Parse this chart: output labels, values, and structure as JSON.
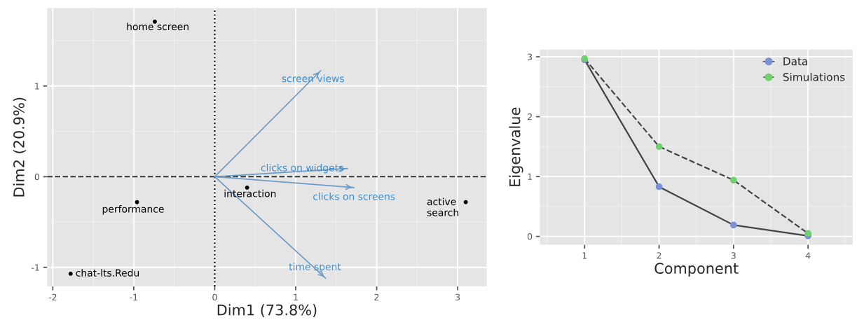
{
  "chart_data": [
    {
      "type": "scatter",
      "xlabel": "Dim1 (73.8%)",
      "ylabel": "Dim2 (20.9%)",
      "xlim": [
        -2.07,
        3.36
      ],
      "ylim": [
        -1.21,
        1.86
      ],
      "xticks": [
        {
          "value": -2,
          "label": "-2"
        },
        {
          "value": -1,
          "label": "-1"
        },
        0,
        1,
        2,
        3
      ],
      "yticks": [
        {
          "value": -1,
          "label": "-1"
        },
        0,
        1
      ],
      "grid": true,
      "series": [
        {
          "type": "scatter",
          "marker": "circle",
          "color": "#000000",
          "x": [
            -0.74,
            -0.96,
            -1.78,
            0.4,
            3.1
          ],
          "values": [
            1.71,
            -0.28,
            -1.07,
            -0.12,
            -0.28
          ]
        },
        {
          "type": "line",
          "marker": "none",
          "color": "#6a9bc8",
          "x": [
            0,
            1.31
          ],
          "values": [
            0,
            1.17
          ]
        },
        {
          "type": "line",
          "marker": "none",
          "color": "#6a9bc8",
          "x": [
            0,
            1.64
          ],
          "values": [
            0,
            0.09
          ]
        },
        {
          "type": "line",
          "marker": "none",
          "color": "#6a9bc8",
          "x": [
            0,
            1.72
          ],
          "values": [
            0,
            -0.12
          ]
        },
        {
          "type": "line",
          "marker": "none",
          "color": "#6a9bc8",
          "x": [
            0,
            1.37
          ],
          "values": [
            0,
            -1.12
          ]
        }
      ],
      "ref_lines": [
        {
          "axis": "x",
          "value": 0,
          "line_style": "dotted",
          "color": "#000000"
        },
        {
          "axis": "y",
          "value": 0,
          "line_style": "dashed",
          "color": "#333333"
        }
      ],
      "annotations": [
        {
          "text": "home screen",
          "x": -0.74,
          "y": 1.71
        },
        {
          "text": "performance",
          "x": -0.96,
          "y": -0.28
        },
        {
          "text": "chat-lts.Redu",
          "x": -1.78,
          "y": -1.07
        },
        {
          "text": "interaction",
          "x": 0.4,
          "y": -0.12
        },
        {
          "text": "active\nsearch",
          "x": 3.1,
          "y": -0.28
        },
        {
          "text": "screen views",
          "x": 1.31,
          "y": 1.17
        },
        {
          "text": "clicks on widgets",
          "x": 1.64,
          "y": 0.09
        },
        {
          "text": "clicks on screens",
          "x": 1.72,
          "y": -0.12
        },
        {
          "text": "time spent",
          "x": 1.37,
          "y": -1.12
        }
      ]
    },
    {
      "type": "line",
      "xlabel": "Component",
      "ylabel": "Eigenvalue",
      "xlim": [
        0.4,
        4.6
      ],
      "ylim": [
        -0.14,
        3.12
      ],
      "xticks": [
        1,
        2,
        3,
        4
      ],
      "yticks": [
        0,
        1,
        2,
        3
      ],
      "grid": true,
      "legend": "top right",
      "marker": "circle",
      "x": [
        1,
        2,
        3,
        4
      ],
      "series": [
        {
          "name": "Data",
          "color": "#7b8fd4",
          "line_style": "solid",
          "values": [
            2.95,
            0.83,
            0.19,
            0.01
          ]
        },
        {
          "name": "Simulations",
          "color": "#6ed36e",
          "line_style": "dashed",
          "values": [
            2.97,
            1.5,
            0.94,
            0.05
          ]
        }
      ]
    }
  ]
}
